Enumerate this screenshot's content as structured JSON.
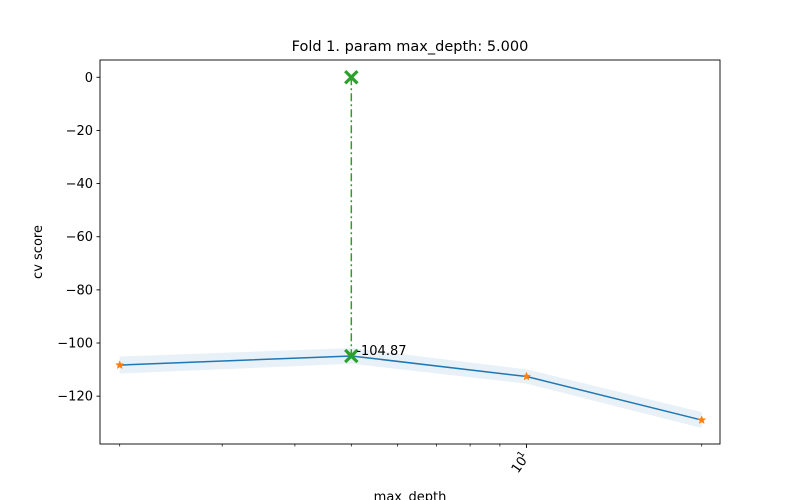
{
  "chart_data": {
    "type": "line",
    "title": "Fold 1. param max_depth: 5.000",
    "xlabel": "max_depth",
    "ylabel": "cv score",
    "xscale": "log",
    "xlim": [
      1.85,
      21.5
    ],
    "ylim": [
      -138,
      6.5
    ],
    "yticks": [
      0,
      -20,
      -40,
      -60,
      -80,
      -100,
      -120
    ],
    "ytick_labels": [
      "0",
      "−20",
      "−40",
      "−60",
      "−80",
      "−100",
      "−120"
    ],
    "xticks_major": [
      10
    ],
    "xticks_major_labels": [
      "10^1"
    ],
    "xticks_minor": [
      2,
      3,
      4,
      5,
      6,
      7,
      8,
      9,
      20
    ],
    "series": [
      {
        "x": [
          2,
          5,
          10,
          20
        ],
        "y": [
          -108.3,
          -104.87,
          -112.6,
          -129.0
        ],
        "band_lower": [
          -111.5,
          -107.8,
          -115.3,
          -132.0
        ],
        "band_upper": [
          -105.1,
          -101.9,
          -109.9,
          -126.0
        ],
        "color": "#1f77b4",
        "marker_color": "#ff7f0e"
      }
    ],
    "best": {
      "x": 5,
      "y": -104.87,
      "top_y": 0,
      "label": "-104.87",
      "color": "#2ca02c"
    },
    "grid": false
  }
}
